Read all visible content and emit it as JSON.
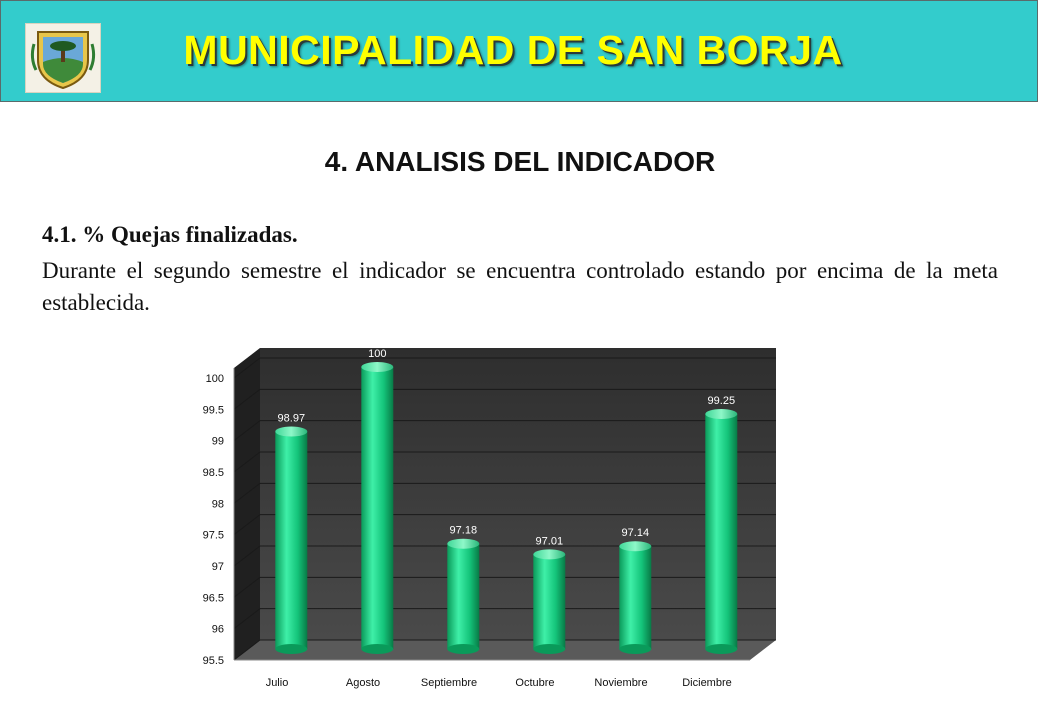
{
  "header": {
    "title": "MUNICIPALIDAD DE SAN BORJA",
    "logo_icon": "municipal-crest-icon",
    "background": "#33cccc",
    "title_color": "#ffff00"
  },
  "section": {
    "title": "4. ANALISIS DEL INDICADOR",
    "subheading": "4.1. % Quejas finalizadas.",
    "paragraph": "Durante el segundo semestre el indicador se encuentra controlado estando por encima de la meta establecida."
  },
  "chart_data": {
    "type": "bar",
    "categories": [
      "Julio",
      "Agosto",
      "Septiembre",
      "Octubre",
      "Noviembre",
      "Diciembre"
    ],
    "values": [
      98.97,
      100,
      97.18,
      97.01,
      97.14,
      99.25
    ],
    "data_labels": [
      "98.97",
      "100",
      "97.18",
      "97.01",
      "97.14",
      "99.25"
    ],
    "y_ticks": [
      "95.5",
      "96",
      "96.5",
      "97",
      "97.5",
      "98",
      "98.5",
      "99",
      "99.5",
      "100"
    ],
    "ylim": [
      95.5,
      100
    ],
    "grid": true,
    "bar_color": "#1ee08f",
    "plot_background": "#3a3a3a",
    "xlabel": "",
    "ylabel": ""
  }
}
